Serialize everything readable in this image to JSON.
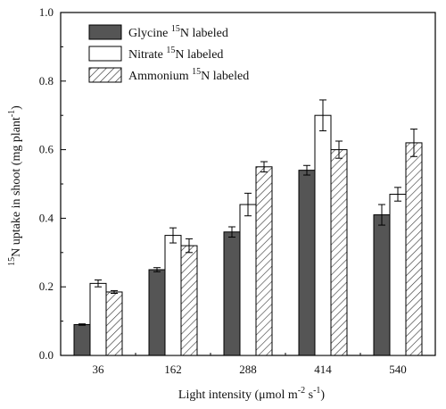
{
  "chart_data": {
    "type": "bar",
    "categories": [
      "36",
      "162",
      "288",
      "414",
      "540"
    ],
    "series": [
      {
        "name_main": "Glycine ",
        "name_iso": "15",
        "name_tail": "N labeled",
        "fill": "#555555",
        "pattern": "solid",
        "values": [
          0.09,
          0.25,
          0.36,
          0.54,
          0.41
        ],
        "errors": [
          0.002,
          0.006,
          0.015,
          0.014,
          0.03
        ]
      },
      {
        "name_main": "Nitrate ",
        "name_iso": "15",
        "name_tail": "N labeled",
        "fill": "#ffffff",
        "pattern": "none",
        "values": [
          0.21,
          0.35,
          0.44,
          0.7,
          0.47
        ],
        "errors": [
          0.01,
          0.022,
          0.033,
          0.045,
          0.02
        ]
      },
      {
        "name_main": "Ammonium ",
        "name_iso": "15",
        "name_tail": "N labeled",
        "fill": "#ffffff",
        "pattern": "hatch",
        "values": [
          0.185,
          0.32,
          0.55,
          0.6,
          0.62
        ],
        "errors": [
          0.004,
          0.02,
          0.015,
          0.025,
          0.04
        ]
      }
    ],
    "yticks": [
      "0.0",
      "0.2",
      "0.4",
      "0.6",
      "0.8",
      "1.0"
    ],
    "ylim": [
      0,
      1.0
    ],
    "ylabel": {
      "sup1": "15",
      "main": "N uptake in shoot (mg plant",
      "sup2": "-1",
      "tail": ")"
    },
    "xlabel": {
      "main": "Light intensity (μmol m",
      "sup1": "-2",
      "mid": " s",
      "sup2": "-1",
      "tail": ")"
    },
    "legend_position": "top-left"
  }
}
